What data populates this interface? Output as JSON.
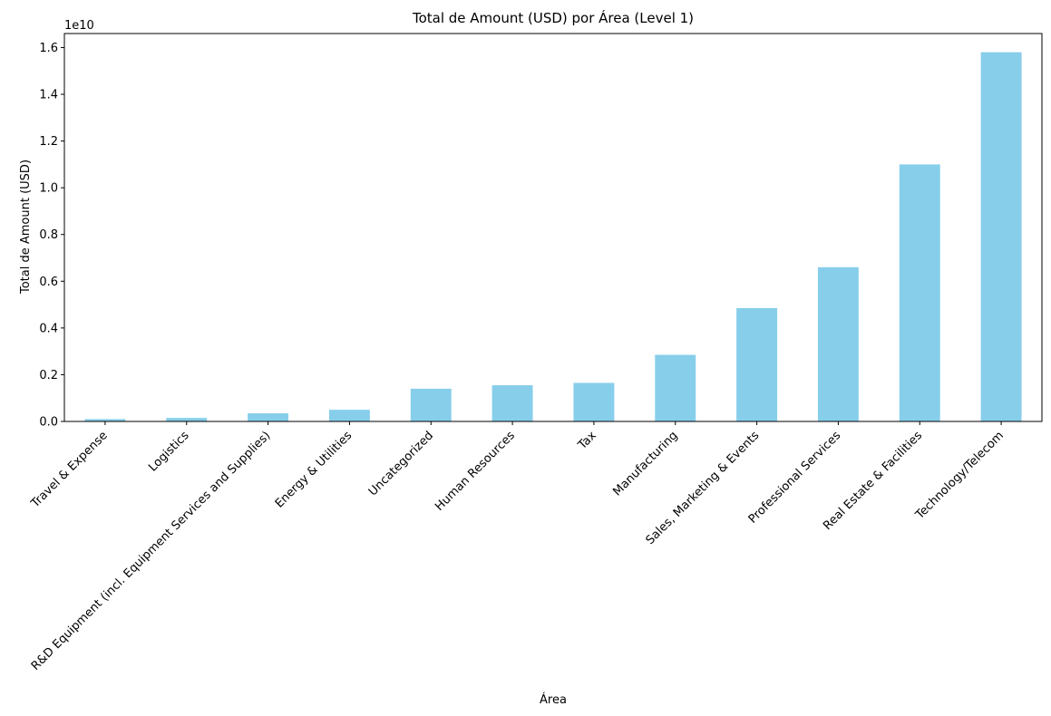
{
  "chart_data": {
    "type": "bar",
    "title": "Total de Amount (USD) por Área (Level 1)",
    "xlabel": "Área",
    "ylabel": "Total de Amount (USD)",
    "y_offset_label": "1e10",
    "ylim": [
      0,
      1.66
    ],
    "y_unit_scale": 10000000000,
    "yticks": [
      0.0,
      0.2,
      0.4,
      0.6,
      0.8,
      1.0,
      1.2,
      1.4,
      1.6
    ],
    "ytick_labels": [
      "0.0",
      "0.2",
      "0.4",
      "0.6",
      "0.8",
      "1.0",
      "1.2",
      "1.4",
      "1.6"
    ],
    "categories": [
      "Travel & Expense",
      "Logistics",
      "R&D Equipment (incl. Equipment Services and Supplies)",
      "Energy & Utilities",
      "Uncategorized",
      "Human Resources",
      "Tax",
      "Manufacturing",
      "Sales, Marketing & Events",
      "Professional Services",
      "Real Estate & Facilities",
      "Technology/Telecom"
    ],
    "values": [
      0.01,
      0.015,
      0.035,
      0.05,
      0.14,
      0.155,
      0.165,
      0.285,
      0.485,
      0.66,
      1.1,
      1.58
    ],
    "bar_color": "#87CEEB",
    "grid": false,
    "legend": false
  }
}
